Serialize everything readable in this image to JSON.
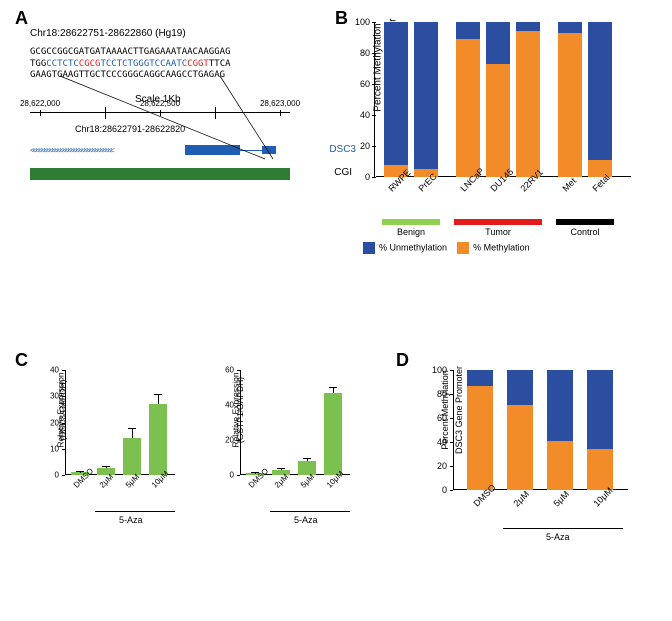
{
  "colors": {
    "unmeth": "#2b4ea0",
    "meth": "#f28c28",
    "bar_green": "#7cc04f",
    "benign": "#8fd14f",
    "tumor": "#e41a1c",
    "control": "#000000",
    "cgi": "#2e7d32",
    "gene_blue": "#1e5fb3"
  },
  "panelA": {
    "label": "A",
    "header": "Chr18:28622751-28622860 (Hg19)",
    "seq_line1": "GCGCCGGCGATGATAAAACTTGAGAAATAACAAGGAG",
    "seq_line2_pre": "TGG",
    "seq_line2_blue1": "CCTCTC",
    "seq_line2_red1": "CGCG",
    "seq_line2_blue2": "TCCTCTGGGTCCAATC",
    "seq_line2_red2": "CGGT",
    "seq_line2_post": "TTCA",
    "seq_line3": "GAAGTGAAGTTGCTCCCGGGCAGGCAAGCCTGAGAG",
    "scale_label": "Scale 1Kb",
    "pos_start": "28,622,000",
    "pos_mid": "28,622,500",
    "pos_end": "28,623,000",
    "pos_range": "Chr18:28622791-28622820",
    "gene_name": "DSC3",
    "cgi_label": "CGI"
  },
  "panelB": {
    "label": "B",
    "type": "stacked-bar",
    "ylabel_l1": "Percent Methylation",
    "ylabel_l2": "DSC3 Gene Promoter",
    "ylim": [
      0,
      100
    ],
    "ytick_step": 20,
    "categories": [
      "RWPE",
      "PrEC",
      "LNCaP",
      "DU145",
      "22RV1",
      "Met",
      "Fetal"
    ],
    "meth_values": [
      8,
      5,
      89,
      73,
      94,
      93,
      11
    ],
    "groups": [
      {
        "name": "Benign",
        "start": 0,
        "end": 1,
        "color_key": "benign"
      },
      {
        "name": "Tumor",
        "start": 2,
        "end": 4,
        "color_key": "tumor"
      },
      {
        "name": "Control",
        "start": 5,
        "end": 6,
        "color_key": "control"
      }
    ],
    "legend_unmeth": "% Unmethylation",
    "legend_meth": "% Methylation"
  },
  "panelC": {
    "label": "C",
    "type": "bar",
    "categories": [
      "DMSO",
      "2μM",
      "5μM",
      "10μM"
    ],
    "aza_label": "5-Aza",
    "chart1": {
      "ylabel_l1": "Relative Expression",
      "ylabel_l2": "(DSC3/GAPDH)",
      "ylim": [
        0,
        40
      ],
      "ytick_step": 10,
      "values": [
        1,
        2.5,
        14,
        27
      ],
      "errors": [
        0.2,
        0.6,
        3.5,
        3.5
      ]
    },
    "chart2": {
      "ylabel_l1": "Relative Expression",
      "ylabel_l2": "(GSTP1/GAPDH)",
      "ylim": [
        0,
        60
      ],
      "ytick_step": 20,
      "values": [
        1,
        2.8,
        8,
        47
      ],
      "errors": [
        0.2,
        0.5,
        1.2,
        3
      ]
    }
  },
  "panelD": {
    "label": "D",
    "type": "stacked-bar",
    "ylabel_l1": "Percent Methylation",
    "ylabel_l2": "DSC3 Gene Promoter",
    "ylim": [
      0,
      100
    ],
    "ytick_step": 20,
    "categories": [
      "DMSO",
      "2μM",
      "5μM",
      "10μM"
    ],
    "meth_values": [
      87,
      71,
      41,
      34
    ],
    "aza_label": "5-Aza"
  }
}
